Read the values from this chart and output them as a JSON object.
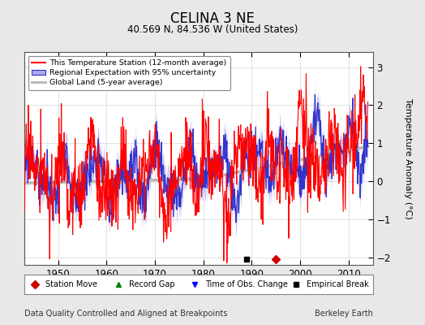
{
  "title": "CELINA 3 NE",
  "subtitle": "40.569 N, 84.536 W (United States)",
  "ylabel": "Temperature Anomaly (°C)",
  "xlabel_note": "Data Quality Controlled and Aligned at Breakpoints",
  "source_note": "Berkeley Earth",
  "xmin": 1943,
  "xmax": 2015,
  "ymin": -2.2,
  "ymax": 3.4,
  "yticks": [
    -2,
    -1,
    0,
    1,
    2,
    3
  ],
  "xticks": [
    1950,
    1960,
    1970,
    1980,
    1990,
    2000,
    2010
  ],
  "bg_color": "#e8e8e8",
  "plot_bg_color": "#ffffff",
  "station_color": "#ff0000",
  "regional_color": "#3333cc",
  "regional_fill_color": "#aaaaee",
  "global_color": "#bbbbbb",
  "legend_entries": [
    "This Temperature Station (12-month average)",
    "Regional Expectation with 95% uncertainty",
    "Global Land (5-year average)"
  ],
  "empirical_break_year": 1989,
  "station_move_year": 1995,
  "empirical_break_y": -2.05,
  "station_move_y": -2.05,
  "grid_color": "#dddddd"
}
